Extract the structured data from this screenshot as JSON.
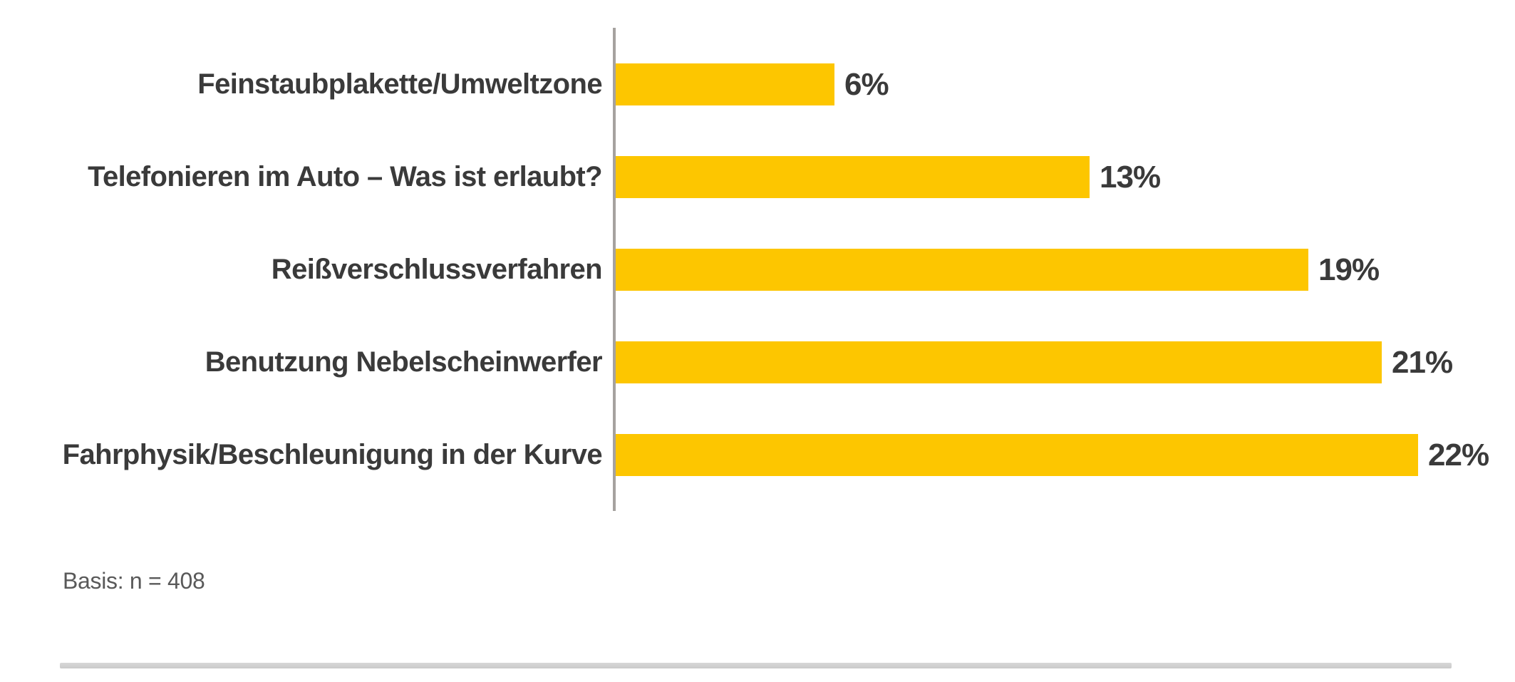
{
  "chart_data": {
    "type": "bar",
    "orientation": "horizontal",
    "title": "",
    "xlabel": "",
    "ylabel": "",
    "categories": [
      "Feinstaubplakette/Umweltzone",
      "Telefonieren im Auto – Was ist erlaubt?",
      "Reißverschlussverfahren",
      "Benutzung Nebelscheinwerfer",
      "Fahrphysik/Beschleunigung in der Kurve"
    ],
    "values": [
      6,
      13,
      19,
      21,
      22
    ],
    "value_labels": [
      "6%",
      "13%",
      "19%",
      "21%",
      "22%"
    ],
    "xlim": [
      0,
      22
    ],
    "grid": false,
    "legend_position": "none",
    "bar_color": "#fdc600",
    "category_label_color": "#3a3a3a",
    "value_label_color": "#3a3a3a",
    "axis_color": "#a6a29f"
  },
  "footer": {
    "basis_label": "Basis: n = 408",
    "basis_color": "#595959",
    "divider_color": "#c9c9c9"
  }
}
